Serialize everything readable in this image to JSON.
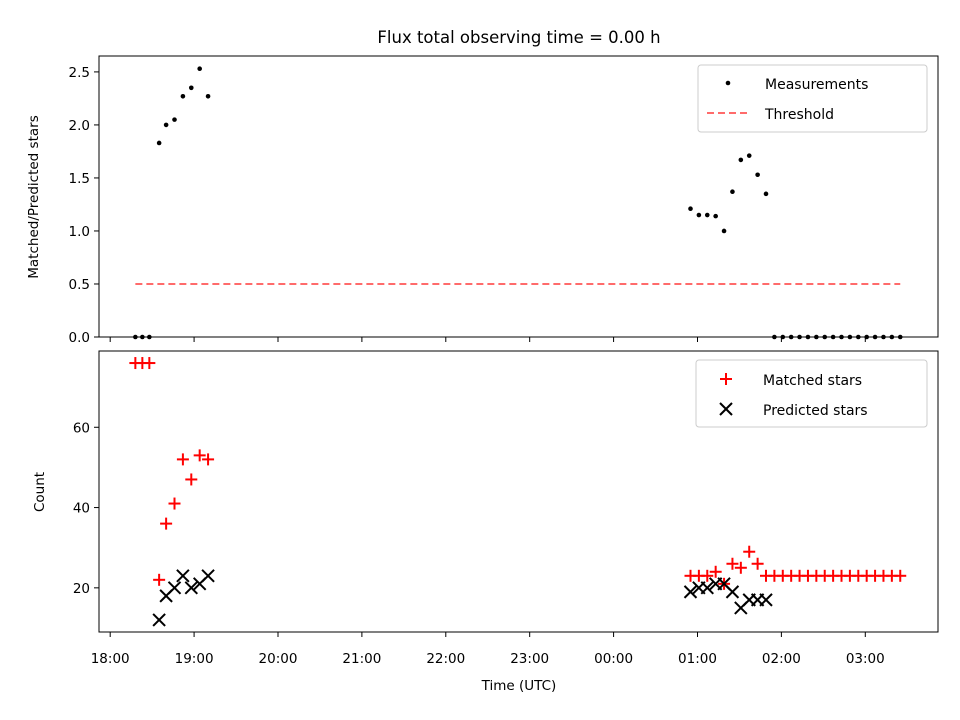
{
  "title": "Flux total observing time = 0.00 h",
  "chart_data": [
    {
      "type": "scatter",
      "ylabel": "Matched/Predicted stars",
      "ylim": [
        0,
        2.65
      ],
      "yticks": [
        0.0,
        0.5,
        1.0,
        1.5,
        2.0,
        2.5
      ],
      "ytick_labels": [
        "0.0",
        "0.5",
        "1.0",
        "1.5",
        "2.0",
        "2.5"
      ],
      "legend": {
        "placement": "top-right",
        "entries": [
          "Measurements",
          "Threshold"
        ]
      },
      "series": [
        {
          "name": "Measurements",
          "color": "#000000",
          "x": [
            "18:18",
            "18:23",
            "18:28",
            "18:35",
            "18:40",
            "18:46",
            "18:52",
            "18:58",
            "19:04",
            "19:10",
            "00:55",
            "01:01",
            "01:07",
            "01:13",
            "01:19",
            "01:25",
            "01:31",
            "01:37",
            "01:43",
            "01:49",
            "01:55",
            "02:01",
            "02:07",
            "02:13",
            "02:19",
            "02:25",
            "02:31",
            "02:37",
            "02:43",
            "02:49",
            "02:55",
            "03:01",
            "03:07",
            "03:13",
            "03:19",
            "03:25"
          ],
          "y": [
            0,
            0,
            0,
            1.83,
            2.0,
            2.05,
            2.27,
            2.35,
            2.53,
            2.27,
            1.21,
            1.15,
            1.15,
            1.14,
            1.0,
            1.37,
            1.67,
            1.71,
            1.53,
            1.35,
            0,
            0,
            0,
            0,
            0,
            0,
            0,
            0,
            0,
            0,
            0,
            0,
            0,
            0,
            0,
            0
          ]
        },
        {
          "name": "Threshold",
          "color": "#ff6b6b",
          "style": "dashed",
          "x": [
            "18:18",
            "03:25"
          ],
          "y": [
            0.5,
            0.5
          ]
        }
      ]
    },
    {
      "type": "scatter",
      "xlabel": "Time (UTC)",
      "ylabel": "Count",
      "ylim": [
        9,
        79
      ],
      "yticks": [
        20,
        40,
        60
      ],
      "ytick_labels": [
        "20",
        "40",
        "60"
      ],
      "xticks": [
        "18:00",
        "19:00",
        "20:00",
        "21:00",
        "22:00",
        "23:00",
        "00:00",
        "01:00",
        "02:00",
        "03:00"
      ],
      "legend": {
        "placement": "top-right",
        "entries": [
          "Matched stars",
          "Predicted stars"
        ]
      },
      "series": [
        {
          "name": "Matched stars",
          "color": "#ff0000",
          "marker": "+",
          "x": [
            "18:18",
            "18:23",
            "18:28",
            "18:35",
            "18:40",
            "18:46",
            "18:52",
            "18:58",
            "19:04",
            "19:10",
            "00:55",
            "01:01",
            "01:07",
            "01:13",
            "01:19",
            "01:25",
            "01:31",
            "01:37",
            "01:43",
            "01:49",
            "01:55",
            "02:01",
            "02:07",
            "02:13",
            "02:19",
            "02:25",
            "02:31",
            "02:37",
            "02:43",
            "02:49",
            "02:55",
            "03:01",
            "03:07",
            "03:13",
            "03:19",
            "03:25"
          ],
          "y": [
            76,
            76,
            76,
            22,
            36,
            41,
            52,
            47,
            53,
            52,
            23,
            23,
            23,
            24,
            21,
            26,
            25,
            29,
            26,
            23,
            23,
            23,
            23,
            23,
            23,
            23,
            23,
            23,
            23,
            23,
            23,
            23,
            23,
            23,
            23,
            23
          ]
        },
        {
          "name": "Predicted stars",
          "color": "#000000",
          "marker": "x",
          "x": [
            "18:35",
            "18:40",
            "18:46",
            "18:52",
            "18:58",
            "19:04",
            "19:10",
            "00:55",
            "01:01",
            "01:07",
            "01:13",
            "01:19",
            "01:25",
            "01:31",
            "01:37",
            "01:43",
            "01:49"
          ],
          "y": [
            12,
            18,
            20,
            23,
            20,
            21,
            23,
            19,
            20,
            20,
            21,
            21,
            19,
            15,
            17,
            17,
            17
          ]
        }
      ]
    }
  ]
}
